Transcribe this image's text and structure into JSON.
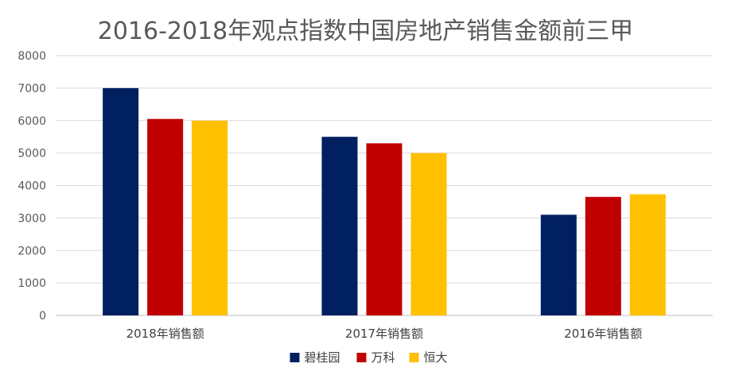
{
  "chart_data": {
    "type": "bar",
    "title": "2016-2018年观点指数中国房地产销售金额前三甲",
    "xlabel": "",
    "ylabel": "",
    "categories": [
      "2018年销售额",
      "2017年销售额",
      "2016年销售额"
    ],
    "series": [
      {
        "name": "碧桂园",
        "values": [
          7000,
          5500,
          3100
        ],
        "color": "#002060"
      },
      {
        "name": "万科",
        "values": [
          6050,
          5300,
          3650
        ],
        "color": "#C00000"
      },
      {
        "name": "恒大",
        "values": [
          6000,
          5000,
          3730
        ],
        "color": "#FFC000"
      }
    ],
    "ylim": [
      0,
      8000
    ],
    "yticks": [
      "0",
      "1000",
      "2000",
      "3000",
      "4000",
      "5000",
      "6000",
      "7000",
      "8000"
    ],
    "grid": true,
    "legend_position": "bottom"
  }
}
